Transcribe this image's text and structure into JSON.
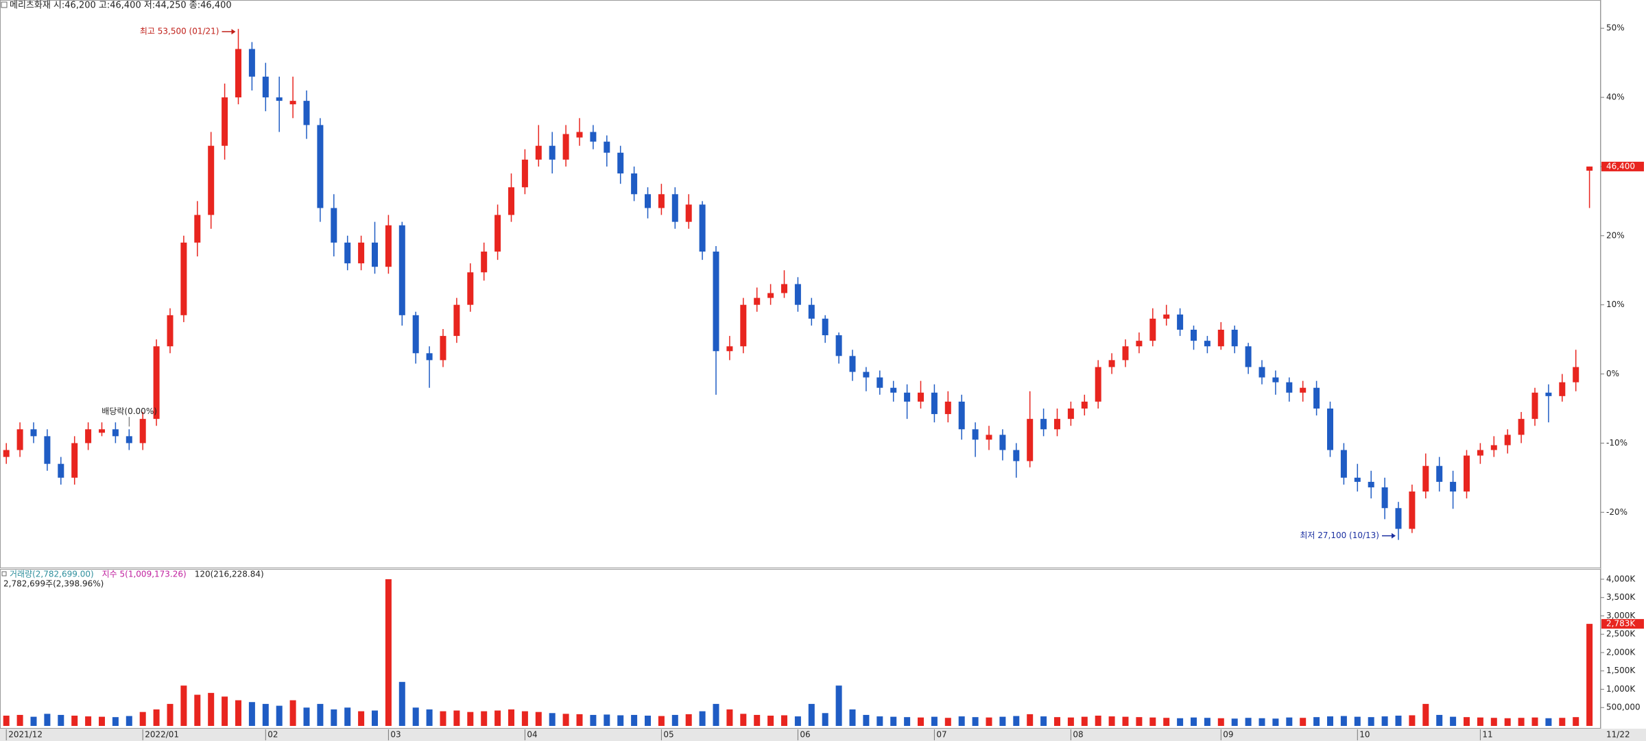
{
  "chart_data": [
    {
      "type": "candlestick",
      "title": "메리츠화재 시:46,200 고:46,400 저:44,250 종:46,400",
      "categories": [
        "2021/12",
        null,
        null,
        null,
        null,
        null,
        null,
        null,
        null,
        null,
        "2022/01",
        null,
        null,
        null,
        null,
        null,
        null,
        null,
        null,
        "02",
        null,
        null,
        null,
        null,
        null,
        null,
        null,
        null,
        "03",
        null,
        null,
        null,
        null,
        null,
        null,
        null,
        null,
        null,
        "04",
        null,
        null,
        null,
        null,
        null,
        null,
        null,
        null,
        null,
        "05",
        null,
        null,
        null,
        null,
        null,
        null,
        null,
        null,
        null,
        "06",
        null,
        null,
        null,
        null,
        null,
        null,
        null,
        null,
        null,
        "07",
        null,
        null,
        null,
        null,
        null,
        null,
        null,
        null,
        null,
        "08",
        null,
        null,
        null,
        null,
        null,
        null,
        null,
        null,
        null,
        null,
        "09",
        null,
        null,
        null,
        null,
        null,
        null,
        null,
        null,
        null,
        "10",
        null,
        null,
        null,
        null,
        null,
        null,
        null,
        null,
        "11",
        null,
        null,
        null,
        null,
        null,
        null,
        null,
        null
      ],
      "last_date": "11/22",
      "candles": [
        [
          -12,
          -10,
          -13,
          -11
        ],
        [
          -11,
          -7,
          -12,
          -8
        ],
        [
          -8,
          -7,
          -10,
          -9
        ],
        [
          -9,
          -8,
          -14,
          -13
        ],
        [
          -13,
          -12,
          -16,
          -15
        ],
        [
          -15,
          -9,
          -16,
          -10
        ],
        [
          -10,
          -7,
          -11,
          -8
        ],
        [
          -8.5,
          -7,
          -9,
          -8
        ],
        [
          -8,
          -7,
          -10,
          -9
        ],
        [
          -9,
          -8,
          -11,
          -10
        ],
        [
          -10,
          -5.5,
          -11,
          -6.5
        ],
        [
          -6.5,
          5,
          -7.5,
          4
        ],
        [
          4,
          9.5,
          3,
          8.5
        ],
        [
          8.5,
          20,
          7.5,
          19
        ],
        [
          19,
          25,
          17,
          23
        ],
        [
          23,
          35,
          21,
          33
        ],
        [
          33,
          42,
          31,
          40
        ],
        [
          40,
          49.9,
          39,
          47
        ],
        [
          47,
          48,
          41,
          43
        ],
        [
          43,
          45,
          38,
          40
        ],
        [
          40,
          43,
          35,
          39.5
        ],
        [
          39,
          43,
          37,
          39.5
        ],
        [
          39.5,
          41,
          34,
          36
        ],
        [
          36,
          37,
          22,
          24
        ],
        [
          24,
          26,
          17,
          19
        ],
        [
          19,
          20,
          15,
          16
        ],
        [
          16,
          20,
          15,
          19
        ],
        [
          19,
          22,
          14.5,
          15.5
        ],
        [
          15.5,
          23,
          14.5,
          21.5
        ],
        [
          21.5,
          22,
          7,
          8.5
        ],
        [
          8.5,
          9,
          1.5,
          3
        ],
        [
          3,
          4,
          -2,
          2
        ],
        [
          2,
          6.5,
          1,
          5.5
        ],
        [
          5.5,
          11,
          4.5,
          10
        ],
        [
          10,
          16,
          9,
          14.7
        ],
        [
          14.7,
          19,
          13.5,
          17.7
        ],
        [
          17.7,
          24.5,
          16.5,
          23
        ],
        [
          23,
          29,
          22,
          27
        ],
        [
          27,
          32.5,
          26,
          31
        ],
        [
          31,
          36,
          30,
          33
        ],
        [
          33,
          35,
          29,
          31
        ],
        [
          31,
          36,
          30,
          34.7
        ],
        [
          34.2,
          37,
          33,
          35
        ],
        [
          35,
          36,
          32.5,
          33.6
        ],
        [
          33.6,
          34.5,
          30,
          32
        ],
        [
          32,
          33,
          27.5,
          29
        ],
        [
          29,
          30,
          25,
          26
        ],
        [
          26,
          27,
          22.5,
          24
        ],
        [
          24,
          27.5,
          23,
          26
        ],
        [
          26,
          27,
          21,
          22
        ],
        [
          22,
          26,
          21,
          24.5
        ],
        [
          24.5,
          25,
          16.5,
          17.7
        ],
        [
          17.7,
          18.5,
          -3,
          3.3
        ],
        [
          3.3,
          5.5,
          2,
          4
        ],
        [
          4,
          11,
          3,
          10
        ],
        [
          10,
          12.5,
          9,
          11
        ],
        [
          11,
          13,
          10,
          11.7
        ],
        [
          11.7,
          15,
          11,
          13
        ],
        [
          13,
          14,
          9,
          10
        ],
        [
          10,
          11,
          7,
          8
        ],
        [
          8,
          8.5,
          4.5,
          5.6
        ],
        [
          5.6,
          6,
          1.5,
          2.6
        ],
        [
          2.6,
          3.5,
          -1,
          0.3
        ],
        [
          0.3,
          1,
          -2.5,
          -0.5
        ],
        [
          -0.5,
          0.5,
          -3,
          -2
        ],
        [
          -2,
          -1,
          -4,
          -2.7
        ],
        [
          -2.7,
          -1.5,
          -6.5,
          -4
        ],
        [
          -4,
          -1,
          -5,
          -2.7
        ],
        [
          -2.7,
          -1.5,
          -7,
          -5.8
        ],
        [
          -5.8,
          -2.5,
          -7,
          -4
        ],
        [
          -4,
          -3,
          -9.5,
          -8
        ],
        [
          -8,
          -7,
          -12,
          -9.5
        ],
        [
          -9.5,
          -7.5,
          -11,
          -8.8
        ],
        [
          -8.8,
          -8,
          -12.5,
          -11
        ],
        [
          -11,
          -10,
          -15,
          -12.6
        ],
        [
          -12.6,
          -2.5,
          -13.5,
          -6.5
        ],
        [
          -6.5,
          -5,
          -9,
          -8
        ],
        [
          -8,
          -5,
          -9,
          -6.5
        ],
        [
          -6.5,
          -4,
          -7.5,
          -5
        ],
        [
          -5,
          -3,
          -6,
          -4
        ],
        [
          -4,
          2,
          -5,
          1
        ],
        [
          1,
          3,
          0,
          2
        ],
        [
          2,
          5,
          1,
          4
        ],
        [
          4,
          6,
          3,
          4.8
        ],
        [
          4.8,
          9.5,
          4,
          8
        ],
        [
          8,
          10,
          7,
          8.6
        ],
        [
          8.6,
          9.5,
          5.5,
          6.4
        ],
        [
          6.4,
          7,
          3.5,
          4.8
        ],
        [
          4.8,
          5.5,
          3,
          4
        ],
        [
          4,
          7.5,
          3.5,
          6.4
        ],
        [
          6.4,
          7,
          3,
          4
        ],
        [
          4,
          4.5,
          0,
          1
        ],
        [
          1,
          2,
          -1.5,
          -0.5
        ],
        [
          -0.5,
          0.5,
          -3,
          -1.2
        ],
        [
          -1.2,
          -0.5,
          -4,
          -2.7
        ],
        [
          -2.7,
          -1,
          -4,
          -2
        ],
        [
          -2,
          -1,
          -6,
          -5
        ],
        [
          -5,
          -4,
          -12,
          -11
        ],
        [
          -11,
          -10,
          -16,
          -15
        ],
        [
          -15,
          -13,
          -17,
          -15.6
        ],
        [
          -15.6,
          -14,
          -18,
          -16.4
        ],
        [
          -16.4,
          -15,
          -21,
          -19.4
        ],
        [
          -19.4,
          -18.5,
          -24,
          -22.4
        ],
        [
          -22.4,
          -16,
          -23,
          -17
        ],
        [
          -17,
          -11.5,
          -18,
          -13.3
        ],
        [
          -13.3,
          -12,
          -17,
          -15.6
        ],
        [
          -15.6,
          -14,
          -19.5,
          -17
        ],
        [
          -17,
          -11,
          -18,
          -11.8
        ],
        [
          -11.8,
          -10,
          -13,
          -11
        ],
        [
          -11,
          -9,
          -12,
          -10.3
        ],
        [
          -10.3,
          -8,
          -11.5,
          -8.8
        ],
        [
          -8.8,
          -5.5,
          -10,
          -6.5
        ],
        [
          -6.5,
          -2,
          -7.5,
          -2.7
        ],
        [
          -2.7,
          -1.5,
          -7,
          -3.2
        ],
        [
          -3.2,
          0,
          -4,
          -1.2
        ],
        [
          -1.2,
          3.5,
          -2.5,
          1
        ],
        [
          29.4,
          30,
          24,
          30
        ]
      ],
      "up_color": "#e8251f",
      "down_color": "#1f5cc4",
      "ylim": [
        -28,
        52.3
      ],
      "yticks": [
        {
          "value": 50,
          "label": "50%"
        },
        {
          "value": 40,
          "label": "40%"
        },
        {
          "value": 30,
          "label": "30%"
        },
        {
          "value": 20,
          "label": "20%"
        },
        {
          "value": 10,
          "label": "10%"
        },
        {
          "value": 0,
          "label": "0%"
        },
        {
          "value": -10,
          "label": "-10%"
        },
        {
          "value": -20,
          "label": "-20%"
        }
      ],
      "annotations": {
        "high": "최고 53,500 (01/21)",
        "low": "최저 27,100 (10/13)",
        "dividend": "배당락(0.00%)",
        "last_price": "46,400"
      }
    },
    {
      "type": "bar",
      "legend": [
        {
          "name": "거래량(2,782,699.00)",
          "color": "#2f8f9d"
        },
        {
          "name": "지수 5(1,009,173.26)",
          "color": "#c0209f"
        },
        {
          "name": "120(216,228.84)",
          "color": "#222222"
        }
      ],
      "subtitle": "2,782,699주(2,398.96%)",
      "values": [
        280000,
        300000,
        250000,
        330000,
        300000,
        280000,
        260000,
        250000,
        240000,
        270000,
        380000,
        450000,
        600000,
        1100000,
        850000,
        900000,
        800000,
        700000,
        650000,
        600000,
        550000,
        700000,
        500000,
        600000,
        450000,
        500000,
        400000,
        420000,
        4000000,
        1200000,
        500000,
        450000,
        400000,
        420000,
        380000,
        400000,
        420000,
        450000,
        400000,
        380000,
        350000,
        330000,
        320000,
        300000,
        310000,
        290000,
        300000,
        280000,
        270000,
        300000,
        320000,
        400000,
        600000,
        450000,
        330000,
        300000,
        280000,
        290000,
        260000,
        600000,
        350000,
        1100000,
        450000,
        300000,
        260000,
        250000,
        240000,
        230000,
        250000,
        220000,
        260000,
        240000,
        230000,
        250000,
        270000,
        320000,
        260000,
        240000,
        230000,
        250000,
        280000,
        260000,
        250000,
        240000,
        230000,
        220000,
        210000,
        230000,
        220000,
        210000,
        200000,
        220000,
        210000,
        200000,
        230000,
        220000,
        240000,
        260000,
        270000,
        250000,
        240000,
        260000,
        280000,
        290000,
        600000,
        300000,
        250000,
        240000,
        230000,
        220000,
        210000,
        220000,
        230000,
        210000,
        220000,
        240000,
        2782699
      ],
      "last_label": "2,783K",
      "ylim": [
        0,
        4280000
      ],
      "yticks": [
        {
          "value": 500000,
          "label": "500,000"
        },
        {
          "value": 1000000,
          "label": "1,000K"
        },
        {
          "value": 1500000,
          "label": "1,500K"
        },
        {
          "value": 2000000,
          "label": "2,000K"
        },
        {
          "value": 2500000,
          "label": "2,500K"
        },
        {
          "value": 3000000,
          "label": "3,000K"
        },
        {
          "value": 3500000,
          "label": "3,500K"
        },
        {
          "value": 4000000,
          "label": "4,000K"
        }
      ]
    }
  ]
}
